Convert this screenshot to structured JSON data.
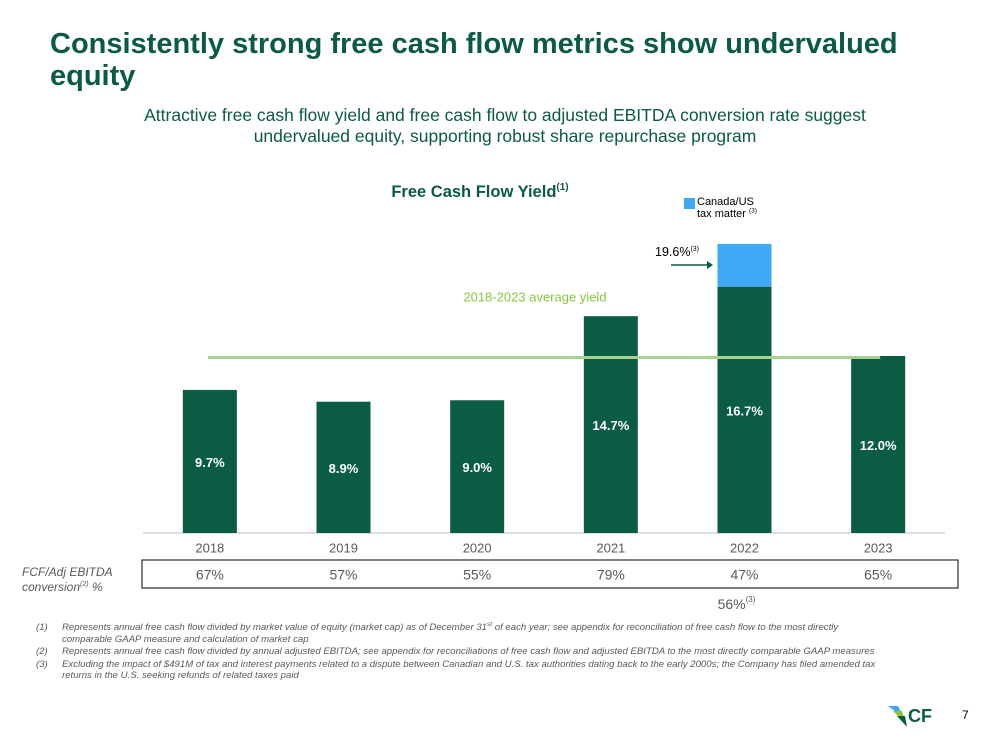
{
  "header": {
    "title": "Consistently strong free cash flow metrics show undervalued equity",
    "subtitle": "Attractive free cash flow yield and free cash flow to adjusted EBITDA conversion rate suggest undervalued equity, supporting robust share repurchase program"
  },
  "chart_data": {
    "type": "bar",
    "title": "Free Cash Flow Yield",
    "title_note": "(1)",
    "categories": [
      "2018",
      "2019",
      "2020",
      "2021",
      "2022",
      "2023"
    ],
    "series": [
      {
        "color": "#0a5c45",
        "values": [
          9.7,
          8.9,
          9.0,
          14.7,
          16.7,
          12.0
        ],
        "value_labels": [
          "9.7%",
          "8.9%",
          "9.0%",
          "14.7%",
          "16.7%",
          "12.0%"
        ]
      },
      {
        "name": "Canada/US tax matter",
        "name_note": "(3)",
        "color": "#3fa9f5",
        "values": [
          null,
          null,
          null,
          null,
          2.9,
          null
        ]
      }
    ],
    "annotation": {
      "text": "19.6%",
      "note": "(3)"
    },
    "reference_line": {
      "label": "2018-2023 average yield",
      "value": 11.9,
      "color": "#a9d18e"
    },
    "ylim": [
      0,
      20
    ]
  },
  "table": {
    "label_line1": "FCF/Adj EBITDA",
    "label_line2": "conversion",
    "label_note": "(2)",
    "label_suffix": " %",
    "values": [
      "67%",
      "57%",
      "55%",
      "79%",
      "47%",
      "65%"
    ],
    "extra_value": "56%",
    "extra_note": "(3)"
  },
  "footnotes": [
    {
      "marker": "(1)",
      "text": "Represents annual free cash flow divided by market value of equity (market cap) as of December 31",
      "sup": "st",
      "rest": " of each year; see appendix for reconciliation of free cash flow to the most directly comparable GAAP measure and calculation of market cap"
    },
    {
      "marker": "(2)",
      "text": "Represents annual free cash flow divided by annual adjusted EBITDA; see appendix for reconciliations of free cash flow and adjusted EBITDA to the most directly comparable GAAP measures"
    },
    {
      "marker": "(3)",
      "text": "Excluding the impact of $491M of tax and interest payments related to a dispute between Canadian and U.S. tax authorities dating back to the early 2000s; the Company has filed amended tax returns in the U.S. seeking refunds of related taxes paid"
    }
  ],
  "footer": {
    "logo": "CF",
    "page": "7"
  }
}
